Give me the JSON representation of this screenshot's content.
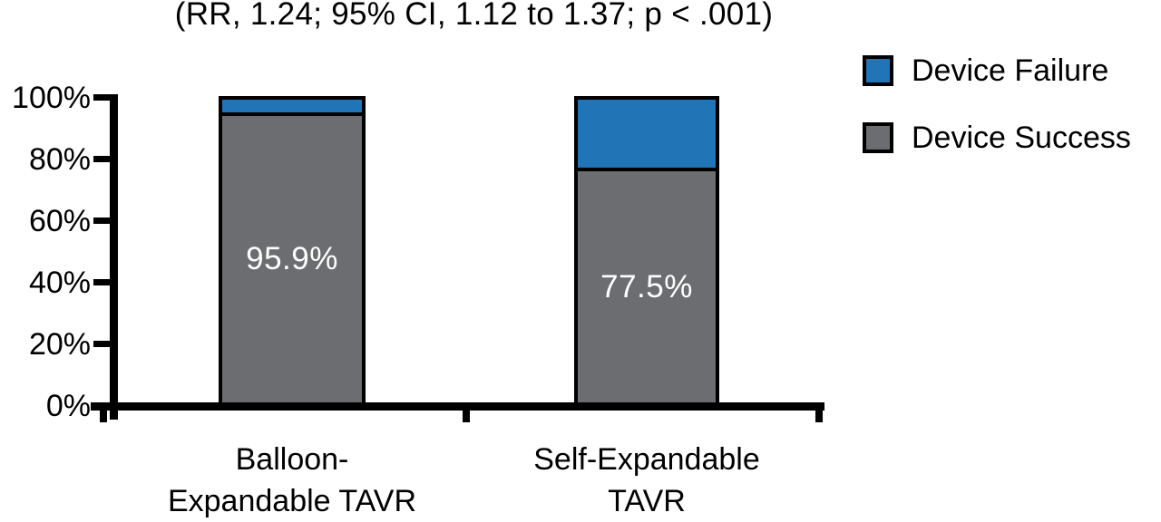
{
  "chart_data": {
    "type": "bar",
    "subtype": "stacked-100-percent-column",
    "title": "(RR, 1.24; 95% CI, 1.12 to 1.37; p < .001)",
    "categories": [
      "Balloon-Expandable TAVR",
      "Self-Expandable TAVR"
    ],
    "categories_display": [
      "Balloon-\nExpandable TAVR",
      "Self-Expandable\nTAVR"
    ],
    "series": [
      {
        "name": "Device Success",
        "values": [
          95.9,
          77.5
        ],
        "color": "#6B6D70"
      },
      {
        "name": "Device Failure",
        "values": [
          4.1,
          22.5
        ],
        "color": "#2174B5"
      }
    ],
    "bar_labels": [
      "95.9%",
      "77.5%"
    ],
    "ytick_labels": [
      "0%",
      "20%",
      "40%",
      "60%",
      "80%",
      "100%"
    ],
    "ylim": [
      0,
      100
    ],
    "grid": false,
    "legend_position": "right",
    "axis_color": "#000000",
    "bar_border_color": "#000000",
    "bar_label_color": "#FFFFFF",
    "background_color": "#FFFFFF"
  }
}
